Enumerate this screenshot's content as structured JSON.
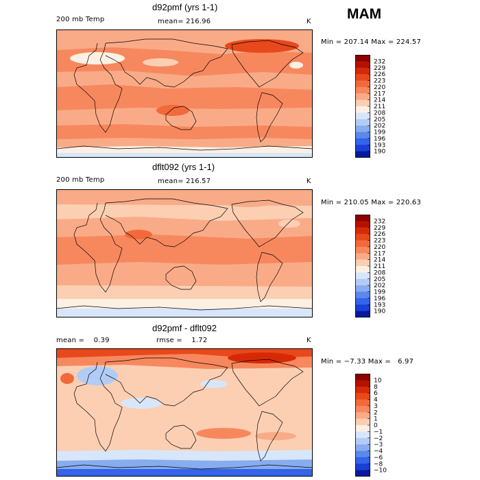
{
  "season": "MAM",
  "panels": [
    {
      "title": "d92pmf (yrs 1-1)",
      "left_label": "200 mb Temp",
      "stat_text": "mean= 216.96",
      "units": "K",
      "minmax_text": "Min = 207.14 Max = 224.57",
      "legend_labels": [
        "232",
        "229",
        "226",
        "223",
        "220",
        "217",
        "214",
        "211",
        "208",
        "205",
        "202",
        "199",
        "196",
        "193",
        "190"
      ],
      "legend_colors": [
        "#8c0000",
        "#b31200",
        "#d62a06",
        "#e8491c",
        "#f26a3b",
        "#f7885e",
        "#f9ab87",
        "#fccfb3",
        "#fdf0e3",
        "#d8e6fa",
        "#b1ccf5",
        "#87acef",
        "#5c88eb",
        "#3563e9",
        "#1a3fd6",
        "#071a9c"
      ]
    },
    {
      "title": "dflt092 (yrs 1-1)",
      "left_label": "200 mb Temp",
      "stat_text": "mean= 216.57",
      "units": "K",
      "minmax_text": "Min = 210.05 Max = 220.63",
      "legend_labels": [
        "232",
        "229",
        "226",
        "223",
        "220",
        "217",
        "214",
        "211",
        "208",
        "205",
        "202",
        "199",
        "196",
        "193",
        "190"
      ],
      "legend_colors": [
        "#8c0000",
        "#b31200",
        "#d62a06",
        "#e8491c",
        "#f26a3b",
        "#f7885e",
        "#f9ab87",
        "#fccfb3",
        "#fdf0e3",
        "#d8e6fa",
        "#b1ccf5",
        "#87acef",
        "#5c88eb",
        "#3563e9",
        "#1a3fd6",
        "#071a9c"
      ]
    },
    {
      "title": "d92pmf - dflt092",
      "left_label": "mean =    0.39",
      "stat_text": "rmse =    1.72",
      "units": "K",
      "minmax_text": "Min = −7.33 Max =   6.97",
      "legend_labels": [
        "10",
        "8",
        "6",
        "4",
        "3",
        "2",
        "1",
        "0",
        "−1",
        "−2",
        "−3",
        "−4",
        "−6",
        "−8",
        "−10"
      ],
      "legend_colors": [
        "#8c0000",
        "#b31200",
        "#d62a06",
        "#e8491c",
        "#f26a3b",
        "#f7885e",
        "#f9ab87",
        "#fccfb3",
        "#fdf0e3",
        "#d8e6fa",
        "#b1ccf5",
        "#87acef",
        "#5c88eb",
        "#3563e9",
        "#1a3fd6",
        "#071a9c"
      ]
    }
  ],
  "chart_data": [
    {
      "type": "heatmap",
      "title": "d92pmf (yrs 1-1)",
      "variable": "200 mb Temp",
      "units": "K",
      "mean": 216.96,
      "min": 207.14,
      "max": 224.57,
      "contour_levels": [
        190,
        193,
        196,
        199,
        202,
        205,
        208,
        211,
        214,
        217,
        220,
        223,
        226,
        229,
        232
      ]
    },
    {
      "type": "heatmap",
      "title": "dflt092 (yrs 1-1)",
      "variable": "200 mb Temp",
      "units": "K",
      "mean": 216.57,
      "min": 210.05,
      "max": 220.63,
      "contour_levels": [
        190,
        193,
        196,
        199,
        202,
        205,
        208,
        211,
        214,
        217,
        220,
        223,
        226,
        229,
        232
      ]
    },
    {
      "type": "heatmap",
      "title": "d92pmf - dflt092",
      "units": "K",
      "mean": 0.39,
      "rmse": 1.72,
      "min": -7.33,
      "max": 6.97,
      "contour_levels": [
        -10,
        -8,
        -6,
        -4,
        -3,
        -2,
        -1,
        0,
        1,
        2,
        3,
        4,
        6,
        8,
        10
      ]
    }
  ]
}
